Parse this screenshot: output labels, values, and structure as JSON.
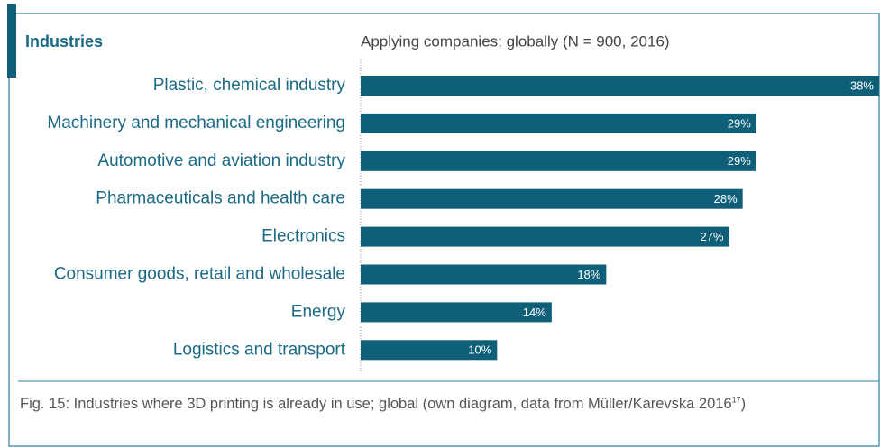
{
  "chart_data": {
    "type": "bar",
    "orientation": "horizontal",
    "title": "Industries",
    "subtitle": "Applying companies; globally (N = 900, 2016)",
    "categories": [
      "Plastic, chemical industry",
      "Machinery and mechanical engineering",
      "Automotive and aviation industry",
      "Pharmaceuticals and health care",
      "Electronics",
      "Consumer goods, retail and wholesale",
      "Energy",
      "Logistics and transport"
    ],
    "values": [
      38,
      29,
      29,
      28,
      27,
      18,
      14,
      10
    ],
    "value_labels": [
      "38%",
      "29%",
      "29%",
      "28%",
      "27%",
      "18%",
      "14%",
      "10%"
    ],
    "color": "#0f5f78",
    "caption": "Fig. 15: Industries where 3D printing is already in use; global (own diagram, data from Müller/Karevska 2016",
    "caption_ref": "17",
    "caption_end": ")"
  }
}
